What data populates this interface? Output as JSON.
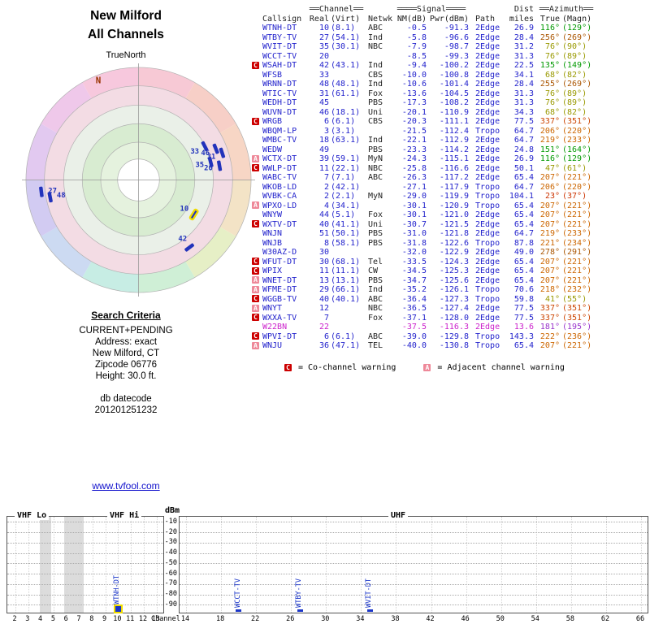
{
  "header": {
    "title_line1": "New Milford",
    "title_line2": "All Channels"
  },
  "radar": {
    "true_north_label": "TrueNorth",
    "north_label": "N",
    "marker_color": "#2233bb",
    "highlight_color": "#f0dc00",
    "markers": [
      {
        "label": "33",
        "az": 63,
        "r": 0.66
      },
      {
        "label": "46",
        "az": 68,
        "r": 0.74
      },
      {
        "label": "31",
        "az": 72,
        "r": 0.78
      },
      {
        "label": "35",
        "az": 76,
        "r": 0.66
      },
      {
        "label": "20",
        "az": 80,
        "r": 0.73
      },
      {
        "label": "10",
        "az": 122,
        "r": 0.58,
        "highlighted": true
      },
      {
        "label": "42",
        "az": 143,
        "r": 0.75
      },
      {
        "label": "48",
        "az": 259,
        "r": 0.8
      },
      {
        "label": "27",
        "az": 263,
        "r": 0.87
      }
    ]
  },
  "search_criteria": {
    "heading": "Search Criteria",
    "lines": [
      "CURRENT+PENDING",
      "Address: exact",
      "New Milford, CT",
      "Zipcode 06776",
      "Height: 30.0 ft."
    ],
    "datecode_label": "db datecode",
    "datecode": "201201251232"
  },
  "footer": {
    "link_text": "www.tvfool.com"
  },
  "table": {
    "header": {
      "channel": "══Channel══",
      "signal": "════Signal════",
      "dist": "Dist",
      "azimuth": "══Azimuth══",
      "callsign": "Callsign",
      "real": "Real",
      "virt": "(Virt)",
      "netwk": "Netwk",
      "nm": "NM(dB)",
      "pwr": "Pwr(dBm)",
      "path": "Path",
      "miles": "miles",
      "true_az": "True",
      "magn": "(Magn)"
    },
    "legend": {
      "c_symbol": "C",
      "c_text": "= Co-channel warning",
      "a_symbol": "A",
      "a_text": "= Adjacent channel warning"
    },
    "rows": [
      {
        "warn": "",
        "callsign": "WTNH-DT",
        "real": "10",
        "virt": "(8.1)",
        "netwk": "ABC",
        "nm": "-0.5",
        "pwr": "-91.3",
        "path": "2Edge",
        "miles": "26.9",
        "true_az": "116°",
        "magn": "(129°)",
        "az_color": "#009900"
      },
      {
        "warn": "",
        "callsign": "WTBY-TV",
        "real": "27",
        "virt": "(54.1)",
        "netwk": "Ind",
        "nm": "-5.8",
        "pwr": "-96.6",
        "path": "2Edge",
        "miles": "28.4",
        "true_az": "256°",
        "magn": "(269°)",
        "az_color": "#aa5500"
      },
      {
        "warn": "",
        "callsign": "WVIT-DT",
        "real": "35",
        "virt": "(30.1)",
        "netwk": "NBC",
        "nm": "-7.9",
        "pwr": "-98.7",
        "path": "2Edge",
        "miles": "31.2",
        "true_az": "76°",
        "magn": "(90°)",
        "az_color": "#999900"
      },
      {
        "warn": "",
        "callsign": "WCCT-TV",
        "real": "20",
        "virt": "",
        "netwk": "",
        "nm": "-8.5",
        "pwr": "-99.3",
        "path": "2Edge",
        "miles": "31.3",
        "true_az": "76°",
        "magn": "(89°)",
        "az_color": "#999900"
      },
      {
        "warn": "C",
        "callsign": "WSAH-DT",
        "real": "42",
        "virt": "(43.1)",
        "netwk": "Ind",
        "nm": "-9.4",
        "pwr": "-100.2",
        "path": "2Edge",
        "miles": "22.5",
        "true_az": "135°",
        "magn": "(149°)",
        "az_color": "#009900"
      },
      {
        "warn": "",
        "callsign": "WFSB",
        "real": "33",
        "virt": "",
        "netwk": "CBS",
        "nm": "-10.0",
        "pwr": "-100.8",
        "path": "2Edge",
        "miles": "34.1",
        "true_az": "68°",
        "magn": "(82°)",
        "az_color": "#999900"
      },
      {
        "warn": "",
        "callsign": "WRNN-DT",
        "real": "48",
        "virt": "(48.1)",
        "netwk": "Ind",
        "nm": "-10.6",
        "pwr": "-101.4",
        "path": "2Edge",
        "miles": "28.4",
        "true_az": "255°",
        "magn": "(269°)",
        "az_color": "#aa5500"
      },
      {
        "warn": "",
        "callsign": "WTIC-TV",
        "real": "31",
        "virt": "(61.1)",
        "netwk": "Fox",
        "nm": "-13.6",
        "pwr": "-104.5",
        "path": "2Edge",
        "miles": "31.3",
        "true_az": "76°",
        "magn": "(89°)",
        "az_color": "#999900"
      },
      {
        "warn": "",
        "callsign": "WEDH-DT",
        "real": "45",
        "virt": "",
        "netwk": "PBS",
        "nm": "-17.3",
        "pwr": "-108.2",
        "path": "2Edge",
        "miles": "31.3",
        "true_az": "76°",
        "magn": "(89°)",
        "az_color": "#999900"
      },
      {
        "warn": "",
        "callsign": "WUVN-DT",
        "real": "46",
        "virt": "(18.1)",
        "netwk": "Uni",
        "nm": "-20.1",
        "pwr": "-110.9",
        "path": "2Edge",
        "miles": "34.3",
        "true_az": "68°",
        "magn": "(82°)",
        "az_color": "#999900"
      },
      {
        "warn": "C",
        "callsign": "WRGB",
        "real": "6",
        "virt": "(6.1)",
        "netwk": "CBS",
        "nm": "-20.3",
        "pwr": "-111.1",
        "path": "2Edge",
        "miles": "77.5",
        "true_az": "337°",
        "magn": "(351°)",
        "az_color": "#cc4400"
      },
      {
        "warn": "",
        "callsign": "WBQM-LP",
        "real": "3",
        "virt": "(3.1)",
        "netwk": "",
        "nm": "-21.5",
        "pwr": "-112.4",
        "path": "Tropo",
        "miles": "64.7",
        "true_az": "206°",
        "magn": "(220°)",
        "az_color": "#cc6600"
      },
      {
        "warn": "",
        "callsign": "WMBC-TV",
        "real": "18",
        "virt": "(63.1)",
        "netwk": "Ind",
        "nm": "-22.1",
        "pwr": "-112.9",
        "path": "2Edge",
        "miles": "64.7",
        "true_az": "219°",
        "magn": "(233°)",
        "az_color": "#cc6600"
      },
      {
        "warn": "",
        "callsign": "WEDW",
        "real": "49",
        "virt": "",
        "netwk": "PBS",
        "nm": "-23.3",
        "pwr": "-114.2",
        "path": "2Edge",
        "miles": "24.8",
        "true_az": "151°",
        "magn": "(164°)",
        "az_color": "#009900"
      },
      {
        "warn": "A",
        "callsign": "WCTX-DT",
        "real": "39",
        "virt": "(59.1)",
        "netwk": "MyN",
        "nm": "-24.3",
        "pwr": "-115.1",
        "path": "2Edge",
        "miles": "26.9",
        "true_az": "116°",
        "magn": "(129°)",
        "az_color": "#009900"
      },
      {
        "warn": "C",
        "callsign": "WWLP-DT",
        "real": "11",
        "virt": "(22.1)",
        "netwk": "NBC",
        "nm": "-25.8",
        "pwr": "-116.6",
        "path": "2Edge",
        "miles": "50.1",
        "true_az": "47°",
        "magn": "(61°)",
        "az_color": "#999900"
      },
      {
        "warn": "",
        "callsign": "WABC-TV",
        "real": "7",
        "virt": "(7.1)",
        "netwk": "ABC",
        "nm": "-26.3",
        "pwr": "-117.2",
        "path": "2Edge",
        "miles": "65.4",
        "true_az": "207°",
        "magn": "(221°)",
        "az_color": "#cc6600"
      },
      {
        "warn": "",
        "callsign": "WKOB-LD",
        "real": "2",
        "virt": "(42.1)",
        "netwk": "",
        "nm": "-27.1",
        "pwr": "-117.9",
        "path": "Tropo",
        "miles": "64.7",
        "true_az": "206°",
        "magn": "(220°)",
        "az_color": "#cc6600"
      },
      {
        "warn": "",
        "callsign": "WVBK-CA",
        "real": "2",
        "virt": "(2.1)",
        "netwk": "MyN",
        "nm": "-29.0",
        "pwr": "-119.9",
        "path": "Tropo",
        "miles": "104.1",
        "true_az": "23°",
        "magn": "(37°)",
        "az_color": "#cc3300"
      },
      {
        "warn": "A",
        "callsign": "WPXO-LD",
        "real": "4",
        "virt": "(34.1)",
        "netwk": "",
        "nm": "-30.1",
        "pwr": "-120.9",
        "path": "Tropo",
        "miles": "65.4",
        "true_az": "207°",
        "magn": "(221°)",
        "az_color": "#cc6600"
      },
      {
        "warn": "",
        "callsign": "WNYW",
        "real": "44",
        "virt": "(5.1)",
        "netwk": "Fox",
        "nm": "-30.1",
        "pwr": "-121.0",
        "path": "2Edge",
        "miles": "65.4",
        "true_az": "207°",
        "magn": "(221°)",
        "az_color": "#cc6600"
      },
      {
        "warn": "C",
        "callsign": "WXTV-DT",
        "real": "40",
        "virt": "(41.1)",
        "netwk": "Uni",
        "nm": "-30.7",
        "pwr": "-121.5",
        "path": "2Edge",
        "miles": "65.4",
        "true_az": "207°",
        "magn": "(221°)",
        "az_color": "#cc6600"
      },
      {
        "warn": "",
        "callsign": "WNJN",
        "real": "51",
        "virt": "(50.1)",
        "netwk": "PBS",
        "nm": "-31.0",
        "pwr": "-121.8",
        "path": "2Edge",
        "miles": "64.7",
        "true_az": "219°",
        "magn": "(233°)",
        "az_color": "#cc6600"
      },
      {
        "warn": "",
        "callsign": "WNJB",
        "real": "8",
        "virt": "(58.1)",
        "netwk": "PBS",
        "nm": "-31.8",
        "pwr": "-122.6",
        "path": "Tropo",
        "miles": "87.8",
        "true_az": "221°",
        "magn": "(234°)",
        "az_color": "#cc6600"
      },
      {
        "warn": "",
        "callsign": "W30AZ-D",
        "real": "30",
        "virt": "",
        "netwk": "",
        "nm": "-32.0",
        "pwr": "-122.9",
        "path": "2Edge",
        "miles": "49.0",
        "true_az": "278°",
        "magn": "(291°)",
        "az_color": "#aa5500"
      },
      {
        "warn": "C",
        "callsign": "WFUT-DT",
        "real": "30",
        "virt": "(68.1)",
        "netwk": "Tel",
        "nm": "-33.5",
        "pwr": "-124.3",
        "path": "2Edge",
        "miles": "65.4",
        "true_az": "207°",
        "magn": "(221°)",
        "az_color": "#cc6600"
      },
      {
        "warn": "C",
        "callsign": "WPIX",
        "real": "11",
        "virt": "(11.1)",
        "netwk": "CW",
        "nm": "-34.5",
        "pwr": "-125.3",
        "path": "2Edge",
        "miles": "65.4",
        "true_az": "207°",
        "magn": "(221°)",
        "az_color": "#cc6600"
      },
      {
        "warn": "A",
        "callsign": "WNET-DT",
        "real": "13",
        "virt": "(13.1)",
        "netwk": "PBS",
        "nm": "-34.7",
        "pwr": "-125.6",
        "path": "2Edge",
        "miles": "65.4",
        "true_az": "207°",
        "magn": "(221°)",
        "az_color": "#cc6600"
      },
      {
        "warn": "A",
        "callsign": "WFME-DT",
        "real": "29",
        "virt": "(66.1)",
        "netwk": "Ind",
        "nm": "-35.2",
        "pwr": "-126.1",
        "path": "Tropo",
        "miles": "70.6",
        "true_az": "218°",
        "magn": "(232°)",
        "az_color": "#cc6600"
      },
      {
        "warn": "C",
        "callsign": "WGGB-TV",
        "real": "40",
        "virt": "(40.1)",
        "netwk": "ABC",
        "nm": "-36.4",
        "pwr": "-127.3",
        "path": "Tropo",
        "miles": "59.8",
        "true_az": "41°",
        "magn": "(55°)",
        "az_color": "#999900"
      },
      {
        "warn": "A",
        "callsign": "WNYT",
        "real": "12",
        "virt": "",
        "netwk": "NBC",
        "nm": "-36.5",
        "pwr": "-127.4",
        "path": "2Edge",
        "miles": "77.5",
        "true_az": "337°",
        "magn": "(351°)",
        "az_color": "#cc4400"
      },
      {
        "warn": "C",
        "callsign": "WXXA-TV",
        "real": "7",
        "virt": "",
        "netwk": "Fox",
        "nm": "-37.1",
        "pwr": "-128.0",
        "path": "2Edge",
        "miles": "77.5",
        "true_az": "337°",
        "magn": "(351°)",
        "az_color": "#cc4400"
      },
      {
        "warn": "",
        "callsign": "W22BN",
        "real": "22",
        "virt": "",
        "netwk": "",
        "nm": "-37.5",
        "pwr": "-116.3",
        "path": "2Edge",
        "miles": "13.6",
        "true_az": "181°",
        "magn": "(195°)",
        "az_color": "#9933cc",
        "text_color": "#cc22cc"
      },
      {
        "warn": "C",
        "callsign": "WPVI-DT",
        "real": "6",
        "virt": "(6.1)",
        "netwk": "ABC",
        "nm": "-39.0",
        "pwr": "-129.8",
        "path": "Tropo",
        "miles": "143.3",
        "true_az": "222°",
        "magn": "(236°)",
        "az_color": "#cc6600"
      },
      {
        "warn": "A",
        "callsign": "WNJU",
        "real": "36",
        "virt": "(47.1)",
        "netwk": "TEL",
        "nm": "-40.0",
        "pwr": "-130.8",
        "path": "Tropo",
        "miles": "65.4",
        "true_az": "207°",
        "magn": "(221°)",
        "az_color": "#cc6600"
      }
    ]
  },
  "chart_data": {
    "type": "bar",
    "title": "",
    "ylabel": "dBm",
    "x_axis_label": "Channel",
    "y_ticks": [
      -10,
      -20,
      -30,
      -40,
      -50,
      -60,
      -70,
      -80,
      -90
    ],
    "sections": [
      {
        "label": "VHF Lo"
      },
      {
        "label": "VHF Hi"
      },
      {
        "label": "UHF"
      }
    ],
    "vhf_ticks": [
      2,
      3,
      4,
      5,
      6,
      7,
      8,
      9,
      10,
      11,
      12,
      13
    ],
    "uhf_ticks": [
      14,
      18,
      22,
      26,
      30,
      34,
      38,
      42,
      46,
      50,
      54,
      58,
      62,
      66
    ],
    "bar_color": "#1a35c8",
    "bars": [
      {
        "callsign": "WTNH-DT",
        "channel": 10,
        "band": "VHF",
        "power_dbm": -91.3,
        "highlighted": true
      },
      {
        "callsign": "WCCT-TV",
        "channel": 20,
        "band": "UHF",
        "power_dbm": -99.3,
        "highlighted": false
      },
      {
        "callsign": "WTBY-TV",
        "channel": 27,
        "band": "UHF",
        "power_dbm": -96.6,
        "highlighted": false
      },
      {
        "callsign": "WVIT-DT",
        "channel": 35,
        "band": "UHF",
        "power_dbm": -98.7,
        "highlighted": false
      }
    ]
  }
}
